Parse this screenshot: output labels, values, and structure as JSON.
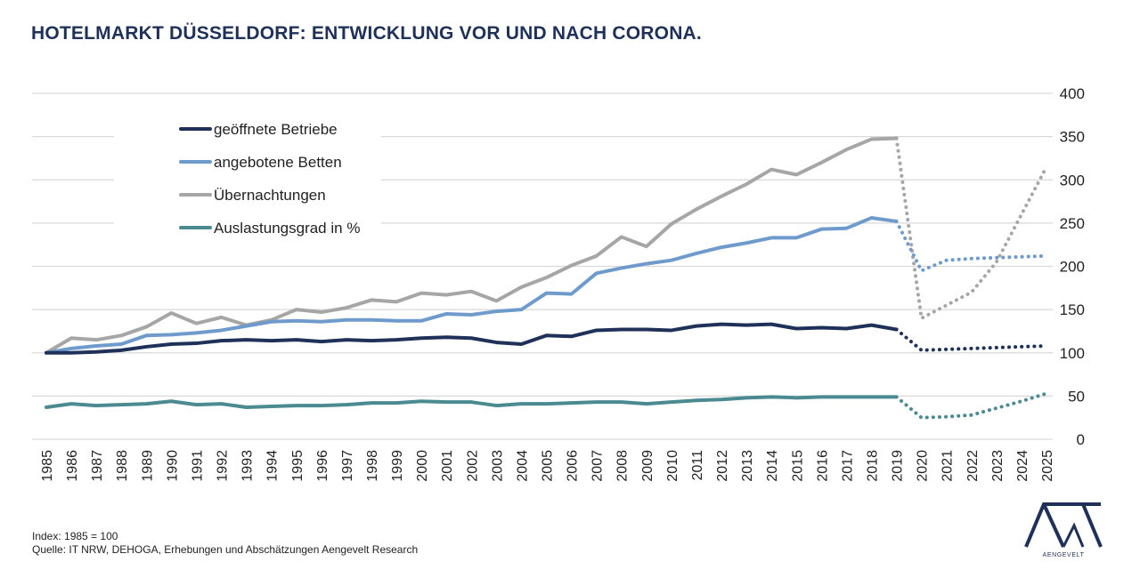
{
  "title": "HOTELMARKT DÜSSELDORF: ENTWICKLUNG VOR UND NACH CORONA.",
  "footnotes": {
    "index": "Index: 1985 = 100",
    "source": "Quelle: IT NRW, DEHOGA, Erhebungen und Abschätzungen Aengevelt Research"
  },
  "logo": {
    "text": "AENGEVELT",
    "icon": "aengevelt-logo-icon"
  },
  "chart_data": {
    "type": "line",
    "x": [
      1985,
      1986,
      1987,
      1988,
      1989,
      1990,
      1991,
      1992,
      1993,
      1994,
      1995,
      1996,
      1997,
      1998,
      1999,
      2000,
      2001,
      2002,
      2003,
      2004,
      2005,
      2006,
      2007,
      2008,
      2009,
      2010,
      2011,
      2012,
      2013,
      2014,
      2015,
      2016,
      2017,
      2018,
      2019,
      2020,
      2021,
      2022,
      2023,
      2024,
      2025
    ],
    "ylim": [
      0,
      400
    ],
    "yticks": [
      0,
      50,
      100,
      150,
      200,
      250,
      300,
      350,
      400
    ],
    "y_axis_side": "right",
    "grid": true,
    "legend_position": "top-left",
    "projection_start": 2019,
    "series": [
      {
        "name": "geöffnete Betriebe",
        "color": "#1f3159",
        "values": [
          100,
          100,
          101,
          103,
          107,
          110,
          111,
          114,
          115,
          114,
          115,
          113,
          115,
          114,
          115,
          117,
          118,
          117,
          112,
          110,
          120,
          119,
          126,
          127,
          127,
          126,
          131,
          133,
          132,
          133,
          128,
          129,
          128,
          132,
          127,
          103,
          104,
          105,
          106,
          107,
          108
        ]
      },
      {
        "name": "angebotene Betten",
        "color": "#6f9bcc",
        "values": [
          100,
          105,
          108,
          110,
          120,
          121,
          123,
          126,
          131,
          136,
          137,
          136,
          138,
          138,
          137,
          137,
          145,
          144,
          148,
          150,
          169,
          168,
          192,
          198,
          203,
          207,
          215,
          222,
          227,
          233,
          233,
          243,
          244,
          256,
          252,
          195,
          207,
          209,
          210,
          211,
          212
        ]
      },
      {
        "name": "Übernachtungen",
        "color": "#a6a6a6",
        "values": [
          100,
          117,
          115,
          120,
          130,
          146,
          134,
          141,
          132,
          138,
          150,
          147,
          152,
          161,
          159,
          169,
          167,
          171,
          160,
          176,
          187,
          201,
          212,
          234,
          223,
          249,
          266,
          281,
          295,
          312,
          306,
          320,
          335,
          347,
          348,
          140,
          155,
          170,
          205,
          260,
          315
        ]
      },
      {
        "name": "Auslastungsgrad in %",
        "color": "#4b8a91",
        "values": [
          37,
          41,
          39,
          40,
          41,
          44,
          40,
          41,
          37,
          38,
          39,
          39,
          40,
          42,
          42,
          44,
          43,
          43,
          39,
          41,
          41,
          42,
          43,
          43,
          41,
          43,
          45,
          46,
          48,
          49,
          48,
          49,
          49,
          49,
          49,
          25,
          26,
          28,
          36,
          44,
          53
        ]
      }
    ]
  }
}
